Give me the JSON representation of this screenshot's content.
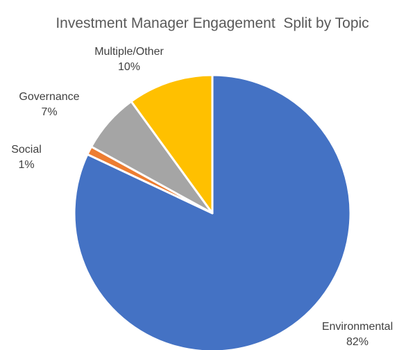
{
  "chart_data": {
    "type": "pie",
    "title": "Investment Manager Engagement  Split by Topic",
    "slices": [
      {
        "label": "Environmental",
        "value": 82,
        "value_label": "82%",
        "color": "#4472C4"
      },
      {
        "label": "Social",
        "value": 1,
        "value_label": "1%",
        "color": "#ED7D31"
      },
      {
        "label": "Governance",
        "value": 7,
        "value_label": "7%",
        "color": "#A5A5A5"
      },
      {
        "label": "Multiple/Other",
        "value": 10,
        "value_label": "10%",
        "color": "#FFC000"
      }
    ],
    "start_angle": "12 o'clock",
    "direction": "clockwise",
    "legend": "none"
  }
}
